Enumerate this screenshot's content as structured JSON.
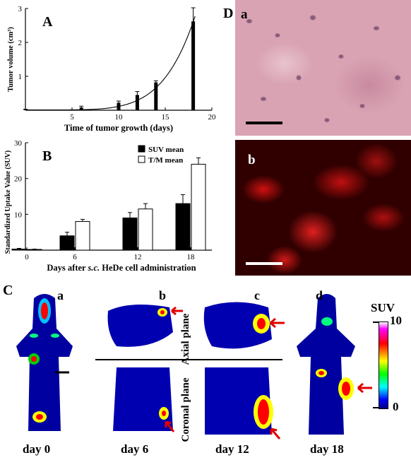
{
  "panels": {
    "A": {
      "letter": "A",
      "chart_data": {
        "type": "bar",
        "xlabel": "Time of tumor growth (days)",
        "ylabel": "Tumor volume (cm³)",
        "xlim": [
          0,
          20
        ],
        "ylim": [
          0,
          3
        ],
        "xticks": [
          5,
          10,
          15,
          20
        ],
        "yticks": [
          1,
          2,
          3
        ],
        "x": [
          0,
          6,
          10,
          12,
          14,
          18
        ],
        "values": [
          0.02,
          0.08,
          0.22,
          0.45,
          0.82,
          2.62
        ],
        "errors": [
          0.01,
          0.04,
          0.05,
          0.1,
          0.05,
          0.4
        ],
        "fit": "exponential"
      }
    },
    "B": {
      "letter": "B",
      "chart_data": {
        "type": "bar",
        "xlabel_pre": "Days after ",
        "xlabel_italic": "s.c.",
        "xlabel_post": " HeDe cell administration",
        "ylabel": "Standardized Uptake Value (SUV)",
        "categories": [
          "0",
          "6",
          "12",
          "18"
        ],
        "ylim": [
          0,
          30
        ],
        "yticks": [
          10,
          20,
          30
        ],
        "legend_position": "top-right",
        "series": [
          {
            "name": "SUV mean",
            "color": "#000000",
            "values": [
              0.3,
              4,
              9,
              13
            ],
            "errors": [
              0.2,
              1,
              1.5,
              2.5
            ]
          },
          {
            "name": "T/M mean",
            "color": "#ffffff",
            "values": [
              0.2,
              8,
              11.5,
              24
            ],
            "errors": [
              0.1,
              0.6,
              1.5,
              1.8
            ]
          }
        ]
      }
    },
    "C": {
      "letter": "C",
      "sub_a": "a",
      "sub_b": "b",
      "sub_c": "c",
      "sub_d": "d",
      "axial_label": "Axial plane",
      "coronal_label": "Coronal plane",
      "days": [
        "day 0",
        "day 6",
        "day 12",
        "day 18"
      ],
      "colorbar": {
        "title": "SUV",
        "max_label": "10",
        "min_label": "0"
      },
      "colors": {
        "background": "#000080",
        "hot": "#ff0000",
        "warm": "#ffff00",
        "arrow": "#e00000"
      }
    },
    "D": {
      "letter": "D",
      "sub_a": "a",
      "sub_b": "b",
      "colors": {
        "he_stain": "#d9a3b3",
        "fluorescence": "#e01010"
      }
    }
  }
}
